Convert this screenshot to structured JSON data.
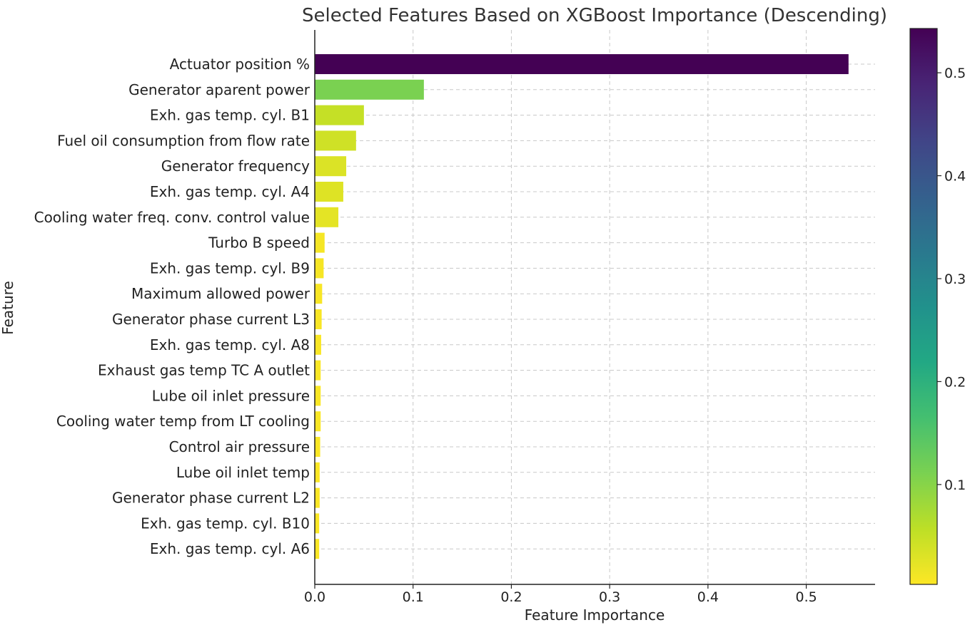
{
  "chart_data": {
    "type": "bar",
    "orientation": "horizontal",
    "title": "Selected Features Based on XGBoost Importance (Descending)",
    "xlabel": "Feature Importance",
    "ylabel": "Feature",
    "xlim": [
      0,
      0.57
    ],
    "xticks": [
      0.0,
      0.1,
      0.2,
      0.3,
      0.4,
      0.5
    ],
    "xtick_labels": [
      "0.0",
      "0.1",
      "0.2",
      "0.3",
      "0.4",
      "0.5"
    ],
    "grid": true,
    "colormap": "viridis_r",
    "colorbar": {
      "range": [
        0.003,
        0.543
      ],
      "ticks": [
        0.1,
        0.2,
        0.3,
        0.4,
        0.5
      ],
      "tick_labels": [
        "0.1",
        "0.2",
        "0.3",
        "0.4",
        "0.5"
      ],
      "placement": "right"
    },
    "categories": [
      "Actuator position %",
      "Generator aparent power",
      "Exh. gas temp. cyl. B1",
      "Fuel oil consumption from flow rate",
      "Generator frequency",
      "Exh. gas temp. cyl. A4",
      "Cooling water freq. conv. control value",
      "Turbo B speed",
      "Exh. gas temp. cyl. B9",
      "Maximum allowed power",
      "Generator phase current L3",
      "Exh. gas temp. cyl. A8",
      "Exhaust gas temp TC A outlet",
      "Lube oil inlet pressure",
      "Cooling water temp from LT cooling",
      "Control air pressure",
      "Lube oil inlet temp",
      "Generator phase current L2",
      "Exh. gas temp. cyl. B10",
      "Exh. gas temp. cyl. A6"
    ],
    "values": [
      0.543,
      0.111,
      0.05,
      0.042,
      0.032,
      0.029,
      0.024,
      0.01,
      0.009,
      0.0075,
      0.007,
      0.0065,
      0.006,
      0.006,
      0.006,
      0.0055,
      0.005,
      0.005,
      0.0045,
      0.0045
    ]
  }
}
